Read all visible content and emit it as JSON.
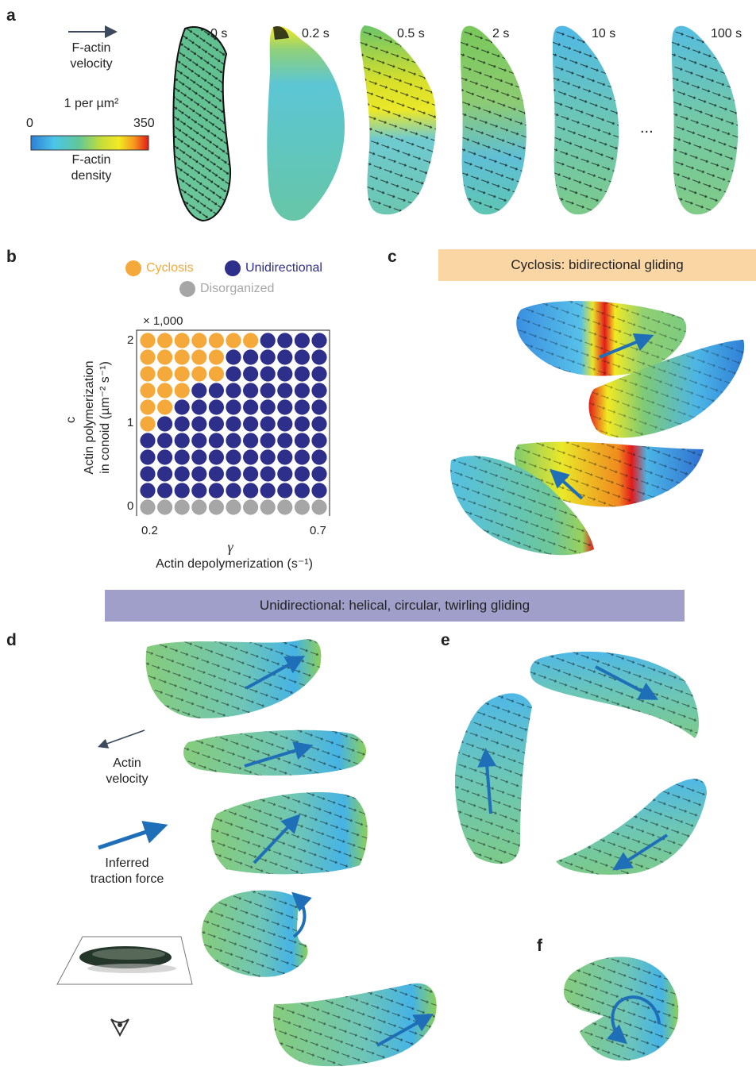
{
  "panels": {
    "a": "a",
    "b": "b",
    "c": "c",
    "d": "d",
    "e": "e",
    "f": "f"
  },
  "panel_a": {
    "velocity_label_line1": "F-actin",
    "velocity_label_line2": "velocity",
    "density_unit": "1 per µm²",
    "colorbar_min": "0",
    "colorbar_max": "350",
    "density_label_line1": "F-actin",
    "density_label_line2": "density",
    "timepoints": [
      "0 s",
      "0.2 s",
      "0.5 s",
      "2 s",
      "10 s",
      "100 s"
    ],
    "ellipsis": "...",
    "colormap": [
      "#2f7fd6",
      "#4cc6e8",
      "#5fc79a",
      "#9ed350",
      "#f2ea23",
      "#f6941d",
      "#e3191b"
    ]
  },
  "panel_b": {
    "legend": [
      {
        "name": "Cyclosis",
        "color": "#f5a93a"
      },
      {
        "name": "Unidirectional",
        "color": "#2e2f8a"
      },
      {
        "name": "Disorganized",
        "color": "#a6a6a6"
      }
    ],
    "multiplier": "× 1,000",
    "ylabel_symbol": "c",
    "ylabel_line1": "Actin polymerization",
    "ylabel_line2": "in conoid (µm⁻² s⁻¹)",
    "xlabel_symbol": "γ",
    "xlabel": "Actin depolymerization (s⁻¹)",
    "y_ticks": [
      "0",
      "1",
      "2"
    ],
    "x_ticks": [
      "0.2",
      "0.7"
    ]
  },
  "chart_data": {
    "type": "scatter",
    "title": "",
    "xlabel": "γ — Actin depolymerization (s⁻¹)",
    "ylabel": "c — Actin polymerization in conoid (µm⁻² s⁻¹) ×1,000",
    "xlim": [
      0.2,
      0.7
    ],
    "ylim": [
      0,
      2
    ],
    "x": [
      0.2,
      0.25,
      0.3,
      0.35,
      0.4,
      0.45,
      0.5,
      0.55,
      0.6,
      0.65,
      0.7
    ],
    "y": [
      0,
      0.2,
      0.4,
      0.6,
      0.8,
      1.0,
      1.2,
      1.4,
      1.6,
      1.8,
      2.0
    ],
    "cyclosis_cols_per_row": [
      0,
      0,
      0,
      0,
      0,
      1,
      2,
      3,
      5,
      5,
      7
    ],
    "categories": [
      "Cyclosis",
      "Unidirectional",
      "Disorganized"
    ],
    "colors": {
      "Cyclosis": "#f5a93a",
      "Unidirectional": "#2e2f8a",
      "Disorganized": "#a6a6a6"
    },
    "legend_position": "top"
  },
  "panel_c": {
    "banner": "Cyclosis: bidirectional gliding",
    "banner_color": "#f9d6a3"
  },
  "unidirectional_banner": {
    "text": "Unidirectional: helical, circular, twirling gliding",
    "color": "#a09fc9"
  },
  "panel_d": {
    "actin_velocity_line1": "Actin",
    "actin_velocity_line2": "velocity",
    "traction_line1": "Inferred",
    "traction_line2": "traction force",
    "arrow_color": "#1f6fb8",
    "velocity_arrow_color": "#3c4a5e"
  }
}
